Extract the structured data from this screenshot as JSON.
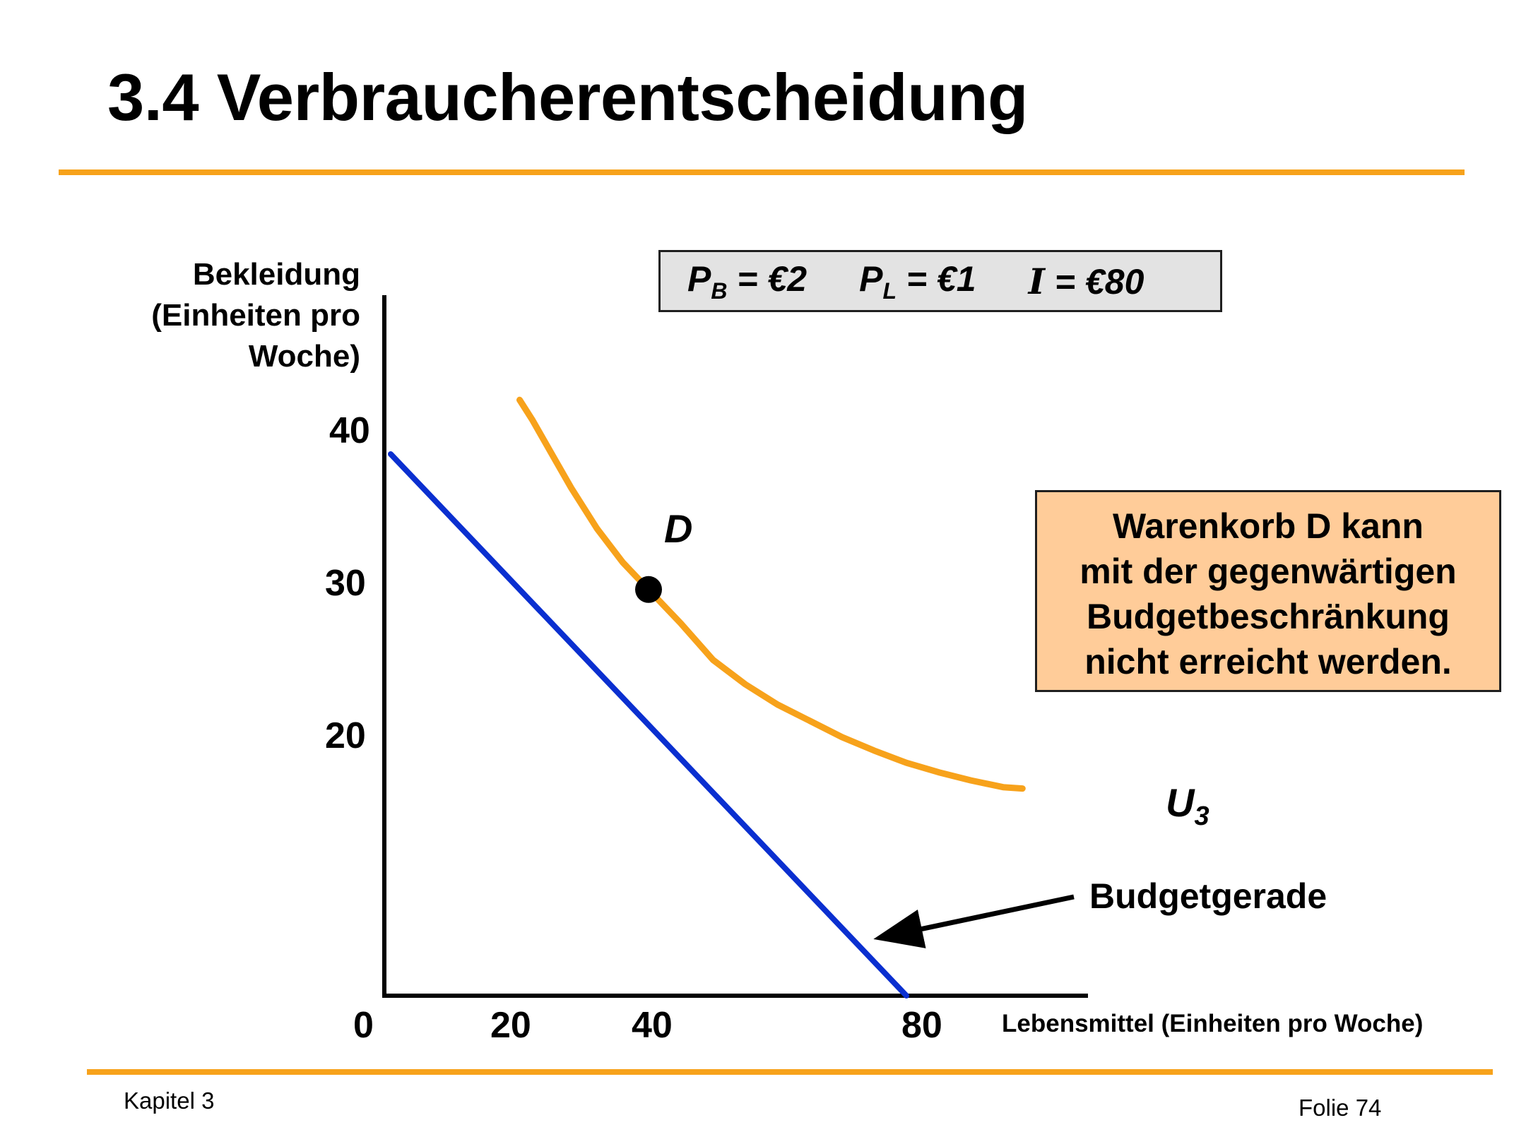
{
  "slide": {
    "title": "3.4 Verbraucherentscheidung",
    "footer_left": "Kapitel 3",
    "footer_right": "Folie 74",
    "accent_color": "#F7A21B"
  },
  "price_box": {
    "pb_label": "P",
    "pb_sub": "B",
    "pb_value": " = €2",
    "pl_label": "P",
    "pl_sub": "L",
    "pl_value": " = €1",
    "income_label": "I",
    "income_value": " = €80",
    "background": "#E3E3E3"
  },
  "note_box": {
    "lines": [
      "Warenkorb D kann",
      "mit der gegenwärtigen",
      "Budgetbeschränkung",
      "nicht erreicht werden."
    ],
    "background": "#FFCC99"
  },
  "chart_data": {
    "type": "line",
    "title": "",
    "ylabel_lines": [
      "Bekleidung",
      "(Einheiten pro",
      "Woche)"
    ],
    "xlabel": "Lebensmittel (Einheiten pro Woche)",
    "x_ticks": [
      "0",
      "20",
      "40",
      "80"
    ],
    "y_ticks": [
      "40",
      "30",
      "20"
    ],
    "xlim": [
      0,
      100
    ],
    "ylim": [
      0,
      45
    ],
    "series": [
      {
        "name": "Budgetgerade",
        "color": "#0A2FD0",
        "x": [
          0,
          80
        ],
        "y": [
          40,
          0
        ]
      },
      {
        "name": "U3",
        "label": "U",
        "label_sub": "3",
        "color": "#F7A21B",
        "x": [
          20,
          22,
          25,
          28,
          32,
          36,
          40,
          45,
          50,
          55,
          60,
          65,
          70,
          75,
          80,
          85,
          90,
          95,
          98
        ],
        "y": [
          44,
          42.5,
          40,
          37.5,
          34.5,
          32,
          30,
          27.5,
          24.8,
          23.0,
          21.5,
          20.3,
          19.1,
          18.1,
          17.2,
          16.5,
          15.9,
          15.4,
          15.3
        ]
      }
    ],
    "points": [
      {
        "name": "D",
        "x": 40,
        "y": 30,
        "color": "#000000"
      }
    ],
    "grid": false,
    "legend": "none"
  }
}
